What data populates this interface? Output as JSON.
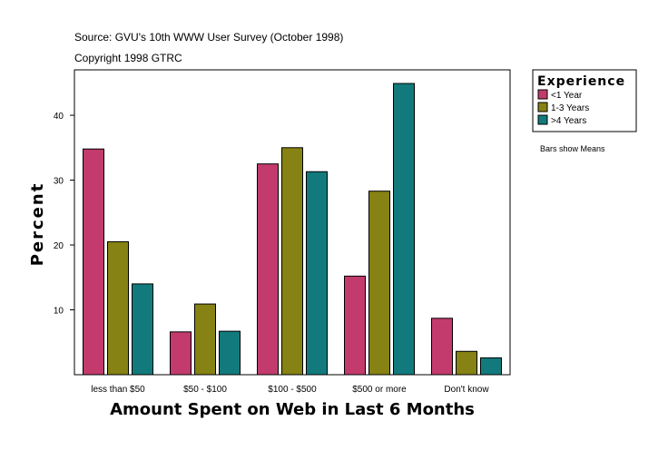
{
  "notes": {
    "source": "Source: GVU's 10th WWW User Survey (October 1998)",
    "copyright": "Copyright 1998 GTRC"
  },
  "colors": {
    "series1": "#C23B6C",
    "series2": "#868213",
    "series3": "#127A7C",
    "frame": "#000000",
    "background": "#ffffff"
  },
  "chart_data": {
    "type": "bar",
    "title": "",
    "xlabel": "Amount Spent on Web in Last 6 Months",
    "ylabel": "Percent",
    "ylim": [
      0,
      47
    ],
    "yticks": [
      10,
      20,
      30,
      40
    ],
    "categories": [
      "less than $50",
      "$50 - $100",
      "$100 - $500",
      "$500 or more",
      "Don't know"
    ],
    "series": [
      {
        "name": "<1 Year",
        "values": [
          34.8,
          6.6,
          32.5,
          15.2,
          8.7
        ]
      },
      {
        "name": "1-3 Years",
        "values": [
          20.5,
          10.9,
          35.0,
          28.3,
          3.6
        ]
      },
      {
        "name": ">4 Years",
        "values": [
          14.0,
          6.7,
          31.3,
          44.9,
          2.6
        ]
      }
    ],
    "legend": {
      "title": "Experience",
      "position": "right"
    },
    "annotation": "Bars show Means"
  }
}
